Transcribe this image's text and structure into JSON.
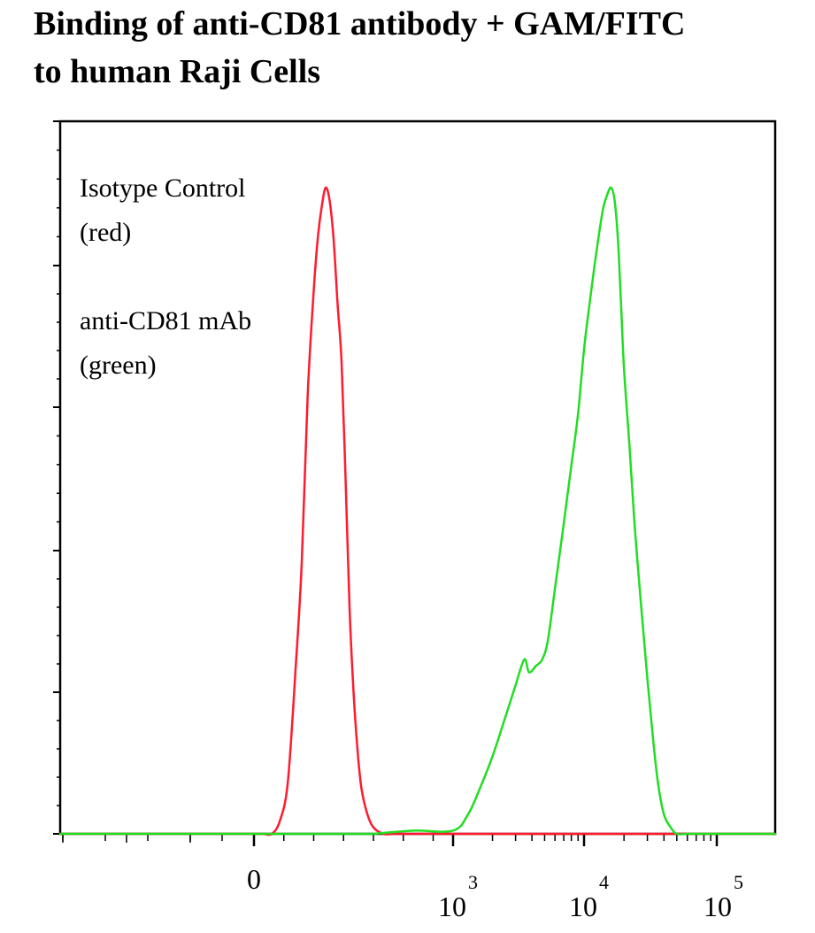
{
  "title_lines": [
    "Binding of anti-CD81 antibody + GAM/FITC",
    "to human Raji Cells"
  ],
  "chart_data": {
    "type": "line",
    "title": "Binding of anti-CD81 antibody + GAM/FITC to human Raji Cells",
    "xlabel": "",
    "ylabel": "",
    "x_scale": "biexponential (log above 10^3)",
    "x_ticks": [
      {
        "value": 0,
        "label": "0"
      },
      {
        "value": 1000,
        "base": "10",
        "exp": "3"
      },
      {
        "value": 10000,
        "base": "10",
        "exp": "4"
      },
      {
        "value": 100000,
        "base": "10",
        "exp": "5"
      }
    ],
    "y_tick_labels": "none",
    "grid": false,
    "legend": "annotation top-left",
    "annotations": [
      [
        "Isotype Control",
        "(red)"
      ],
      [
        "anti-CD81 mAb",
        "(green)"
      ]
    ],
    "series": [
      {
        "color": "#ff1a2e",
        "x": [
          50,
          90,
          130,
          170,
          210,
          240,
          270,
          300,
          320,
          340,
          360,
          380,
          400,
          420,
          440,
          460,
          480,
          500,
          520,
          540,
          570,
          600,
          650,
          700,
          800,
          900,
          950,
          1000,
          1100,
          1300
        ],
        "y": [
          0,
          0,
          2,
          8,
          26,
          42,
          68,
          84,
          92,
          97,
          100,
          98,
          92,
          82,
          73,
          55,
          35,
          22,
          13,
          7,
          3,
          1,
          0,
          0,
          0,
          0,
          0,
          0,
          0,
          0
        ]
      },
      {
        "color": "#22dd22",
        "x": [
          600,
          800,
          1000,
          1300,
          1600,
          2000,
          2500,
          3000,
          3500,
          3800,
          4300,
          4800,
          5300,
          6000,
          7000,
          8000,
          9000,
          10000,
          11000,
          12000,
          13000,
          14000,
          15000,
          16000,
          17000,
          18000,
          19000,
          20000,
          22000,
          24000,
          27000,
          30000,
          33000,
          36000,
          40000,
          45000,
          50000,
          60000
        ],
        "y": [
          0,
          0.5,
          0.5,
          3,
          7,
          12,
          18,
          23,
          27,
          25,
          26,
          27,
          30,
          38,
          48,
          57,
          65,
          75,
          82,
          88,
          93,
          97,
          99,
          100,
          98,
          92,
          82,
          72,
          60,
          48,
          35,
          24,
          15,
          8,
          3,
          1,
          0,
          0
        ]
      }
    ]
  }
}
